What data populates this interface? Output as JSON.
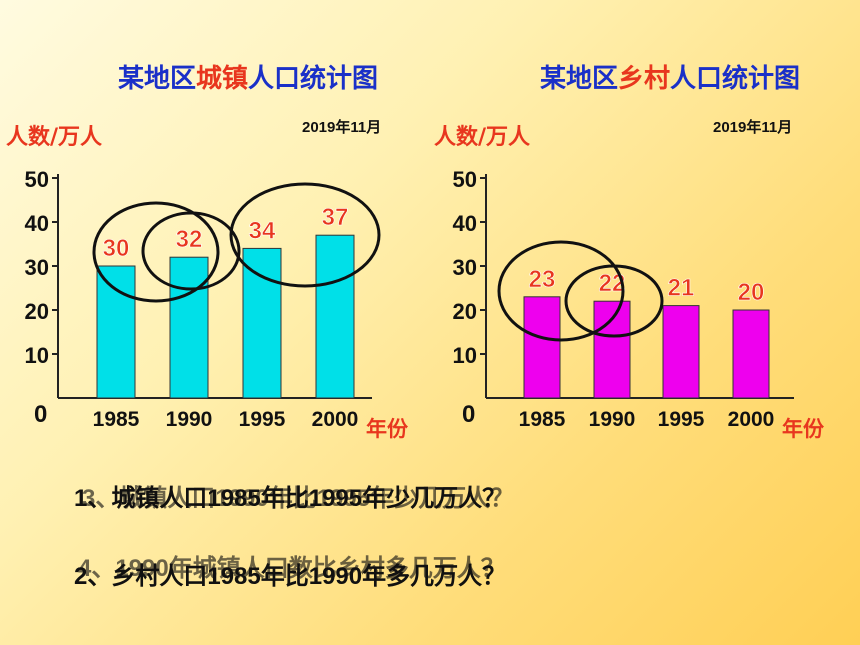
{
  "titles": {
    "left": {
      "prefix": "某地区",
      "highlight": "城镇",
      "suffix": "人口统计图"
    },
    "right": {
      "prefix": "某地区",
      "highlight": "乡村",
      "suffix": "人口统计图"
    }
  },
  "date": "2019年11月",
  "colors": {
    "title": "#1a30c8",
    "highlight": "#e8361e",
    "ylabel": "#e8361e",
    "xlabel": "#e8361e",
    "value_label": "#e8361e",
    "urban_bar": "#00e0e8",
    "rural_bar": "#ee00ee",
    "circle": "#111111"
  },
  "questions": {
    "q1": "1、城镇人口1985年比1995年少几万人？",
    "q3": "3、城镇人口1990年比1995年少几万人？",
    "q2": "2、乡村人口1985年比1990年多几万人？",
    "q4": "4、1990年城镇人口数比乡村多几万人？"
  },
  "chart_data": [
    {
      "type": "bar",
      "title": "某地区城镇人口统计图",
      "categories": [
        "1985",
        "1990",
        "1995",
        "2000"
      ],
      "values": [
        30,
        32,
        34,
        37
      ],
      "ylabel": "人数/万人",
      "xlabel": "年份",
      "yticks": [
        "0",
        "10",
        "20",
        "30",
        "40",
        "50"
      ],
      "ylim": [
        0,
        50
      ],
      "grid": false,
      "bar_color": "#00e0e8"
    },
    {
      "type": "bar",
      "title": "某地区乡村人口统计图",
      "categories": [
        "1985",
        "1990",
        "1995",
        "2000"
      ],
      "values": [
        23,
        22,
        21,
        20
      ],
      "ylabel": "人数/万人",
      "xlabel": "年份",
      "yticks": [
        "0",
        "10",
        "20",
        "30",
        "40",
        "50"
      ],
      "ylim": [
        0,
        50
      ],
      "grid": false,
      "bar_color": "#ee00ee"
    }
  ]
}
